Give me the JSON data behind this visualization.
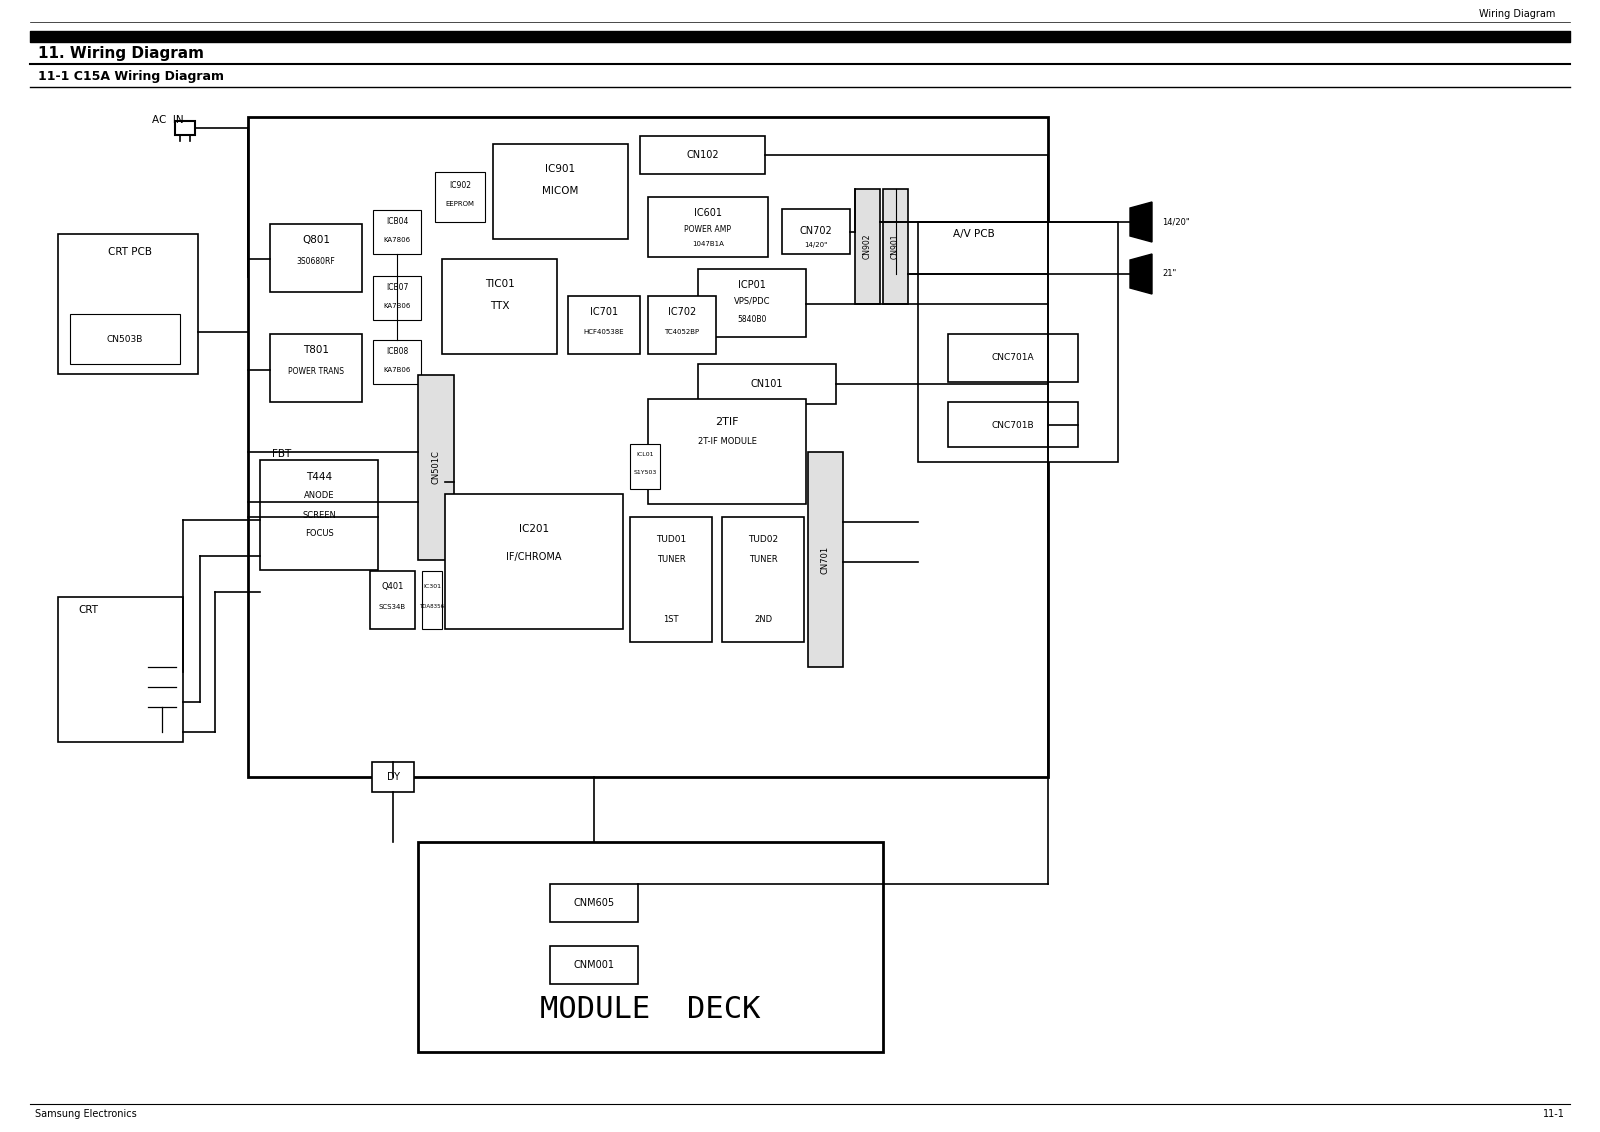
{
  "title_header": "Wiring Diagram",
  "section_title": "11. Wiring Diagram",
  "subsection_title": "11-1 C15A Wiring Diagram",
  "footer_left": "Samsung Electronics",
  "footer_right": "11-1",
  "module_deck_label": "MODULE  DECK",
  "bg_color": "#ffffff",
  "line_color": "#000000"
}
